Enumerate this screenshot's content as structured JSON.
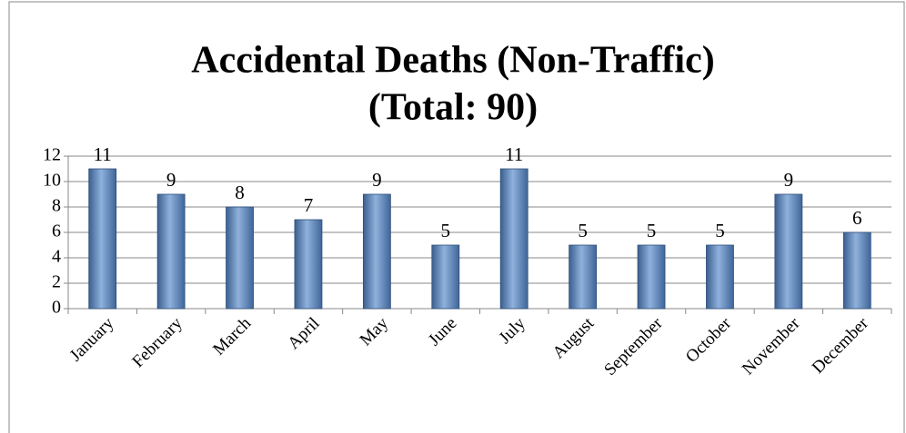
{
  "chart_data": {
    "type": "bar",
    "title": "Accidental Deaths (Non-Traffic)",
    "subtitle": "(Total: 90)",
    "categories": [
      "January",
      "February",
      "March",
      "April",
      "May",
      "June",
      "July",
      "August",
      "September",
      "October",
      "November",
      "December"
    ],
    "values": [
      11,
      9,
      8,
      7,
      9,
      5,
      11,
      5,
      5,
      5,
      9,
      6
    ],
    "color": "#4f81bd",
    "ylim": [
      0,
      12
    ],
    "yticks": [
      0,
      2,
      4,
      6,
      8,
      10,
      12
    ],
    "grid": true
  }
}
